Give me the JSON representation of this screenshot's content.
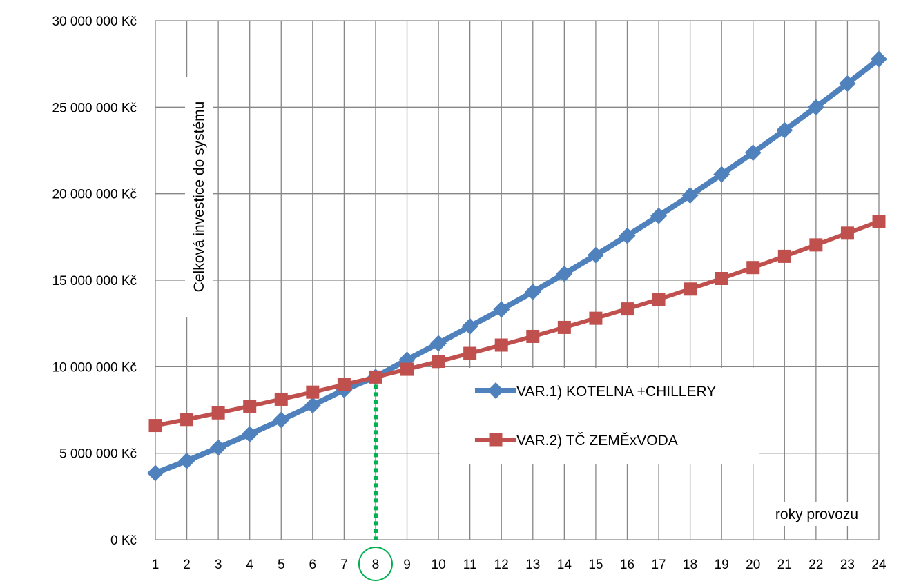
{
  "chart_data": {
    "type": "line",
    "title": "",
    "ylabel": "Celková investice do systému",
    "xlabel": "roky provozu",
    "categories": [
      "1",
      "2",
      "3",
      "4",
      "5",
      "6",
      "7",
      "8",
      "9",
      "10",
      "11",
      "12",
      "13",
      "14",
      "15",
      "16",
      "17",
      "18",
      "19",
      "20",
      "21",
      "22",
      "23",
      "24"
    ],
    "y_ticks": [
      "0 Kč",
      "5 000 000 Kč",
      "10 000 000 Kč",
      "15 000 000 Kč",
      "20 000 000 Kč",
      "25 000 000 Kč",
      "30 000 000 Kč"
    ],
    "ylim": [
      0,
      30000000
    ],
    "grid": true,
    "legend_position": "center-right",
    "highlight": {
      "category": "8",
      "marker": "dotted vertical line + circled tick"
    },
    "series": [
      {
        "name": "VAR.1) KOTELNA +CHILLERY",
        "color": "#4f81bd",
        "marker": "diamond",
        "values": [
          3850000,
          4560000,
          5320000,
          6100000,
          6920000,
          7770000,
          8660000,
          9410000,
          10400000,
          11350000,
          12330000,
          13310000,
          14320000,
          15370000,
          16450000,
          17570000,
          18720000,
          19900000,
          21120000,
          22370000,
          23670000,
          25000000,
          26370000,
          27780000
        ]
      },
      {
        "name": "VAR.2) TČ ZEMĚxVODA",
        "color": "#c0504d",
        "marker": "square",
        "values": [
          6600000,
          6950000,
          7330000,
          7720000,
          8120000,
          8530000,
          8960000,
          9400000,
          9850000,
          10300000,
          10770000,
          11250000,
          11750000,
          12270000,
          12800000,
          13340000,
          13900000,
          14490000,
          15100000,
          15730000,
          16380000,
          17040000,
          17720000,
          18400000
        ]
      }
    ],
    "highlight_color": "#00b050"
  }
}
